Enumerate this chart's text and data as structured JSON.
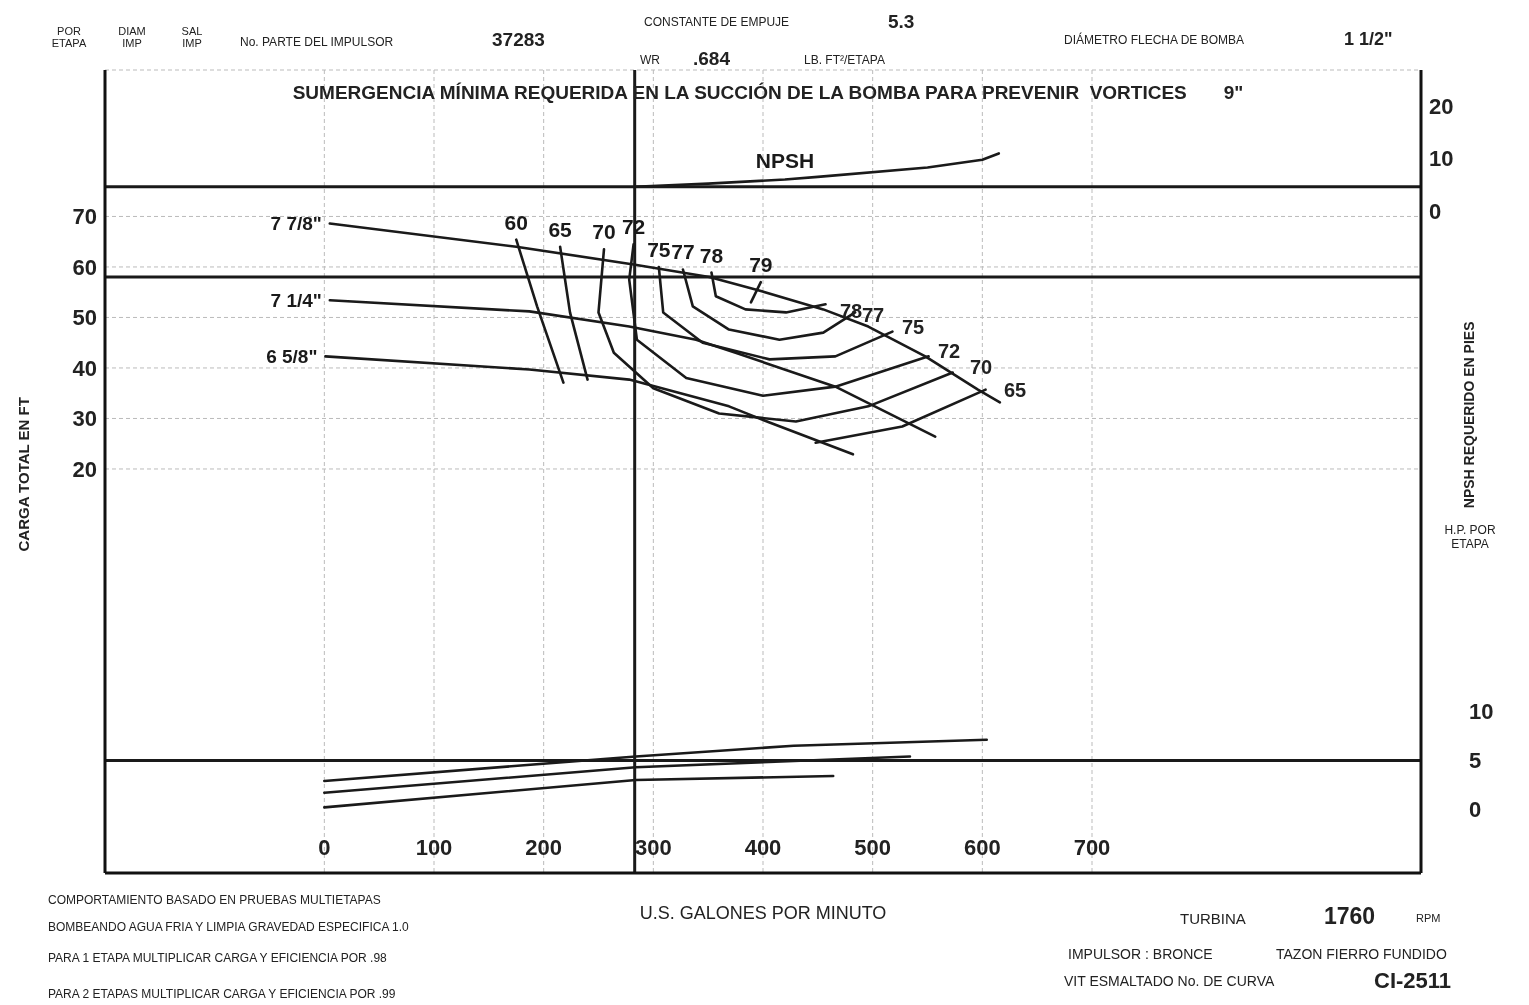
{
  "chart_data": {
    "type": "line",
    "title": "SUMERGENCIA MÍNIMA REQUERIDA EN LA SUCCIÓN DE LA BOMBA PARA PREVENIR  VORTICES       9\"",
    "xlabel": "U.S. GALONES POR MINUTO",
    "ylabel": "CARGA TOTAL EN FT",
    "y2label": "NPSH REQUERIDO EN PIES",
    "y3label": "H.P. POR ETAPA",
    "xlim": [
      -200,
      1000
    ],
    "xticks": [
      0,
      100,
      200,
      300,
      400,
      500,
      600,
      700
    ],
    "ylim": [
      -60,
      99
    ],
    "yticks": [
      20,
      30,
      40,
      50,
      60,
      70
    ],
    "y2lim": [
      -127,
      27
    ],
    "y2ticks": [
      0,
      10,
      20
    ],
    "y3lim": [
      -6.5,
      75.5
    ],
    "y3ticks": [
      0,
      5,
      10
    ],
    "grid": true,
    "legend": false,
    "marker": "none",
    "line_style": "solid",
    "series": [
      {
        "name": "7 7/8\"",
        "color": "#1a1a1a",
        "x": [
          5,
          175,
          282,
          351,
          394,
          455,
          496,
          548,
          596,
          616
        ],
        "values": [
          68.6,
          64,
          60.5,
          58,
          55.5,
          51.6,
          48.2,
          42.3,
          35.7,
          33.2
        ]
      },
      {
        "name": "7 1/4\"",
        "color": "#1a1a1a",
        "x": [
          5,
          187,
          278,
          339,
          375,
          466,
          557
        ],
        "values": [
          53.4,
          51.2,
          48.2,
          45.6,
          43,
          36.3,
          26.4
        ]
      },
      {
        "name": "6 5/8\"",
        "color": "#1a1a1a",
        "x": [
          1,
          187,
          278,
          369,
          406,
          482
        ],
        "values": [
          42.3,
          39.7,
          37.7,
          32.4,
          29.2,
          22.9
        ]
      },
      {
        "name": "60",
        "color": "#1a1a1a",
        "x": [
          175,
          194,
          218
        ],
        "values": [
          65.4,
          52.2,
          37.1
        ]
      },
      {
        "name": "65",
        "color": "#1a1a1a",
        "x": [
          215,
          224,
          240
        ],
        "values": [
          64,
          51,
          37.7
        ]
      },
      {
        "name": "70",
        "color": "#1a1a1a",
        "x": [
          255,
          250,
          264,
          300,
          360,
          430,
          496,
          573
        ],
        "values": [
          63.5,
          51,
          43,
          36,
          31,
          29.4,
          32.4,
          39.1
        ]
      },
      {
        "name": "72",
        "color": "#1a1a1a",
        "x": [
          282,
          278,
          285,
          330,
          400,
          466,
          551
        ],
        "values": [
          64.5,
          57.5,
          45.6,
          38,
          34.5,
          36.3,
          42.3
        ]
      },
      {
        "name": "75",
        "color": "#1a1a1a",
        "x": [
          305,
          309,
          345,
          406,
          466,
          518
        ],
        "values": [
          60,
          51,
          45,
          41.7,
          42.3,
          47.2
        ]
      },
      {
        "name": "77",
        "color": "#1a1a1a",
        "x": [
          327,
          336,
          369,
          415,
          455,
          484
        ],
        "values": [
          59.5,
          52.2,
          47.6,
          45.6,
          47,
          51
        ]
      },
      {
        "name": "78",
        "color": "#1a1a1a",
        "x": [
          353,
          357,
          384,
          421,
          457
        ],
        "values": [
          58.9,
          54.2,
          51.6,
          51,
          52.6
        ]
      },
      {
        "name": "79",
        "color": "#1a1a1a",
        "x": [
          398,
          389
        ],
        "values": [
          57,
          53
        ]
      },
      {
        "color": "#1a1a1a",
        "x": [
          448,
          527,
          603
        ],
        "values": [
          25.2,
          28.4,
          35.7
        ]
      },
      {
        "name": "NPSH",
        "color": "#1a1a1a",
        "axis": "y2",
        "x": [
          283,
          350,
          420,
          450,
          550,
          600,
          615
        ],
        "values": [
          4.6,
          5.2,
          6,
          6.5,
          8.3,
          9.8,
          11
        ]
      },
      {
        "color": "#1a1a1a",
        "axis": "y3",
        "x": [
          0,
          284,
          428,
          604
        ],
        "values": [
          2.9,
          5.4,
          6.5,
          7.1
        ]
      },
      {
        "color": "#1a1a1a",
        "axis": "y3",
        "x": [
          0,
          284,
          534
        ],
        "values": [
          1.7,
          4.3,
          5.4
        ]
      },
      {
        "color": "#1a1a1a",
        "axis": "y3",
        "x": [
          0,
          284,
          464
        ],
        "values": [
          0.2,
          3,
          3.4
        ]
      }
    ],
    "ref_lines": [
      {
        "axis": "x",
        "value": 283,
        "color": "#1a1a1a"
      },
      {
        "axis": "y",
        "value": 58,
        "color": "#1a1a1a"
      },
      {
        "axis": "y2",
        "value": 4.6,
        "color": "#1a1a1a"
      },
      {
        "axis": "y3",
        "value": 5,
        "color": "#1a1a1a"
      }
    ],
    "annotations": [
      "POR ETAPA",
      "DIAM IMP",
      "SAL IMP",
      "No. PARTE DEL IMPULSOR",
      "37283",
      "CONSTANTE DE EMPUJE",
      "5.3",
      "WR",
      ".684",
      "LB. FT²/ETAPA",
      "DIÁMETRO FLECHA DE BOMBA",
      "1 1/2\"",
      "COMPORTAMIENTO BASADO EN PRUEBAS MULTIETAPAS",
      "BOMBEANDO AGUA FRIA Y LIMPIA GRAVEDAD ESPECIFICA 1.0",
      "PARA 1 ETAPA MULTIPLICAR CARGA Y EFICIENCIA POR  .98",
      "PARA 2 ETAPAS MULTIPLICAR CARGA Y EFICIENCIA POR  .99",
      "TURBINA",
      "1760",
      "RPM",
      "IMPULSOR : BRONCE",
      "TAZON FIERRO FUNDIDO",
      "VIT ESMALTADO No. DE CURVA",
      "CI-2511",
      "78",
      "77",
      "75",
      "72",
      "70",
      "65"
    ]
  }
}
